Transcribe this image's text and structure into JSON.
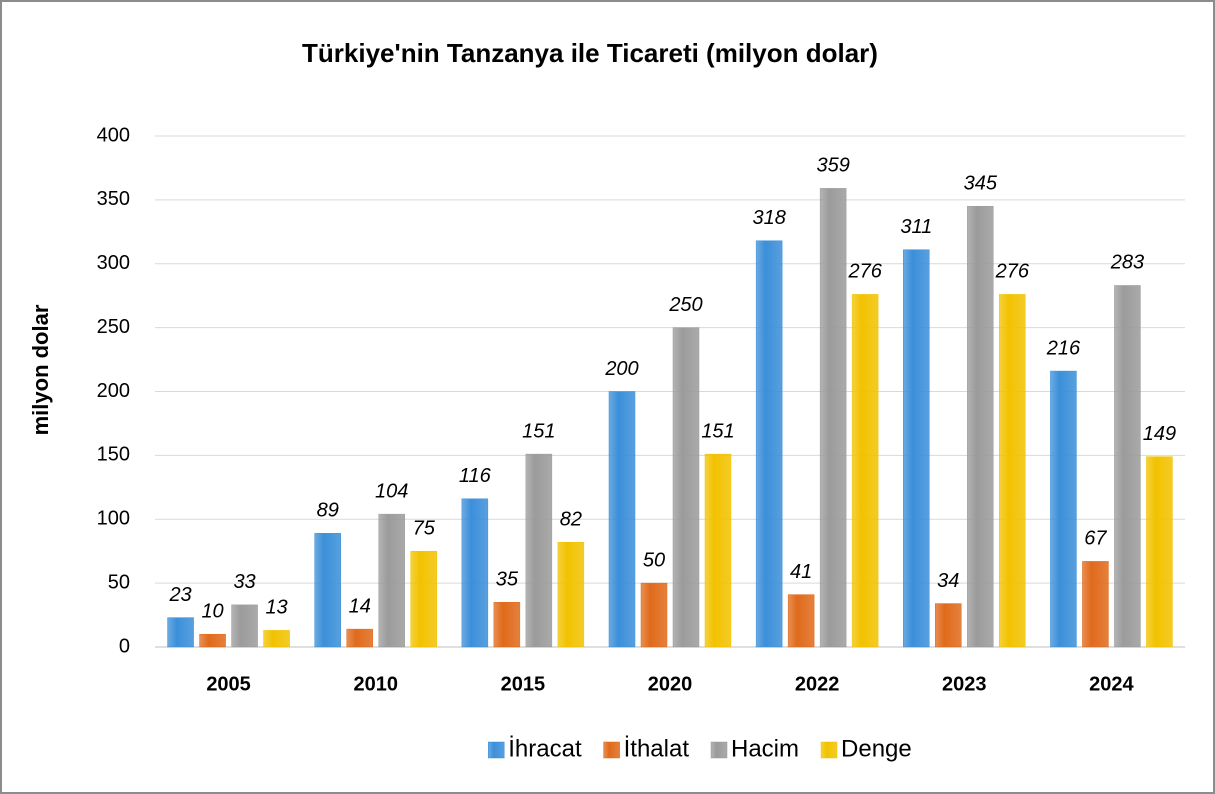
{
  "chart_data": {
    "type": "bar",
    "title": "Türkiye'nin Tanzanya ile Ticareti (milyon dolar)",
    "y_label": "milyon dolar",
    "categories": [
      "2005",
      "2010",
      "2015",
      "2020",
      "2022",
      "2023",
      "2024"
    ],
    "series": [
      {
        "name": "İhracat",
        "color": "#3b8fd9",
        "values": [
          23,
          89,
          116,
          200,
          318,
          311,
          216
        ]
      },
      {
        "name": "İthalat",
        "color": "#e06a1b",
        "values": [
          10,
          14,
          35,
          50,
          41,
          34,
          67
        ]
      },
      {
        "name": "Hacim",
        "color": "#9b9b9b",
        "values": [
          33,
          104,
          151,
          250,
          359,
          345,
          283
        ]
      },
      {
        "name": "Denge",
        "color": "#f2c200",
        "values": [
          13,
          75,
          82,
          151,
          276,
          276,
          149
        ]
      }
    ],
    "ylim": [
      0,
      400
    ],
    "yticks": [
      0,
      50,
      100,
      150,
      200,
      250,
      300,
      350,
      400
    ],
    "grid": true,
    "legend": "bottom"
  }
}
